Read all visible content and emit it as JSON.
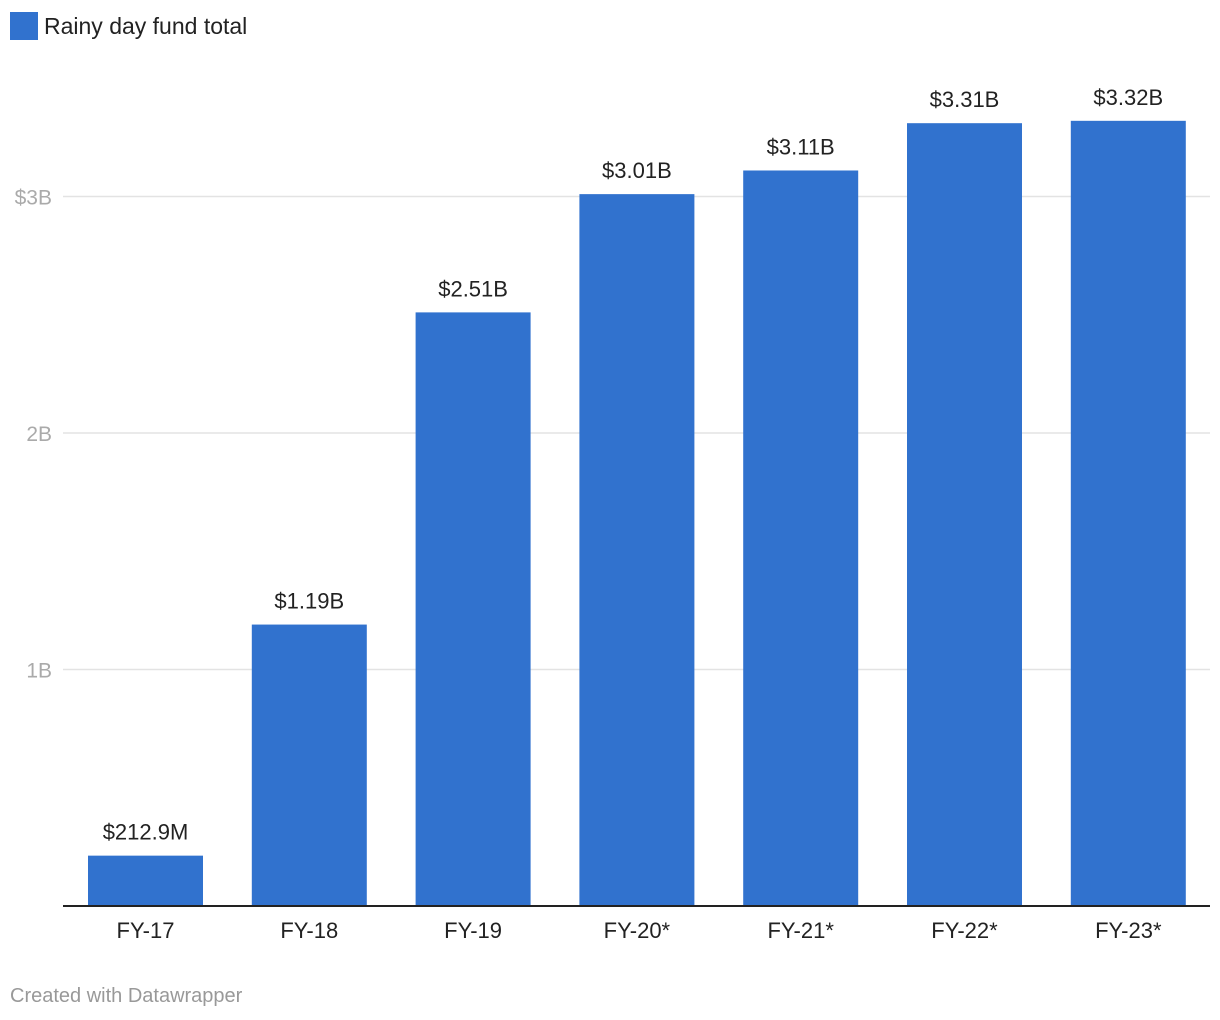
{
  "chart_data": {
    "type": "bar",
    "categories": [
      "FY-17",
      "FY-18",
      "FY-19",
      "FY-20*",
      "FY-21*",
      "FY-22*",
      "FY-23*"
    ],
    "series": [
      {
        "name": "Rainy day fund total",
        "values": [
          0.2129,
          1.19,
          2.51,
          3.01,
          3.11,
          3.31,
          3.32
        ],
        "value_labels": [
          "$212.9M",
          "$1.19B",
          "$2.51B",
          "$3.01B",
          "$3.11B",
          "$3.31B",
          "$3.32B"
        ],
        "color": "#3172ce"
      }
    ],
    "y_ticks": [
      {
        "value": 1,
        "label": "1B"
      },
      {
        "value": 2,
        "label": "2B"
      },
      {
        "value": 3,
        "label": "$3B"
      }
    ],
    "ylim": [
      0,
      3.5
    ],
    "y_unit": "billions of dollars",
    "grid": true,
    "legend": "top-left"
  },
  "footer": {
    "credit": "Created with Datawrapper"
  }
}
